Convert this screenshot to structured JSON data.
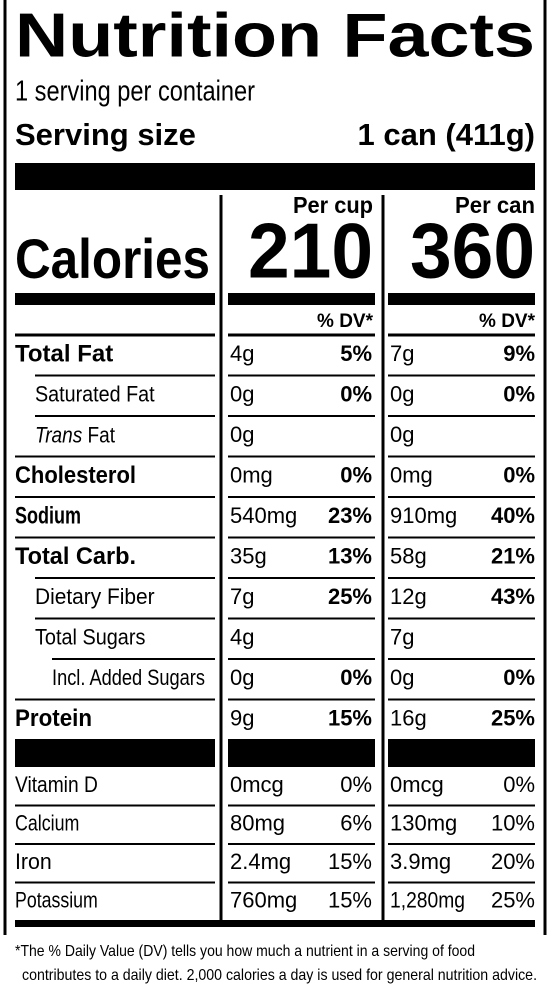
{
  "title": "Nutrition Facts",
  "servings": "1 serving per container",
  "serving_size": {
    "label": "Serving size",
    "value": "1 can (411g)"
  },
  "columns": [
    "Per cup",
    "Per can"
  ],
  "calories": {
    "label": "Calories",
    "values": [
      "210",
      "360"
    ]
  },
  "dv_header": "% DV*",
  "nutrients": [
    {
      "name": "Total Fat",
      "bold": true,
      "indent": 0,
      "cells": [
        "4g",
        "5%",
        "7g",
        "9%"
      ]
    },
    {
      "name": "Saturated Fat",
      "bold": false,
      "indent": 1,
      "cells": [
        "0g",
        "0%",
        "0g",
        "0%"
      ]
    },
    {
      "name_italic": "Trans",
      "name": "Fat",
      "bold": false,
      "indent": 1,
      "cells": [
        "0g",
        null,
        "0g",
        null
      ]
    },
    {
      "name": "Cholesterol",
      "bold": true,
      "indent": 0,
      "cells": [
        "0mg",
        "0%",
        "0mg",
        "0%"
      ]
    },
    {
      "name": "Sodium",
      "bold": true,
      "indent": 0,
      "cells": [
        "540mg",
        "23%",
        "910mg",
        "40%"
      ]
    },
    {
      "name": "Total Carb.",
      "bold": true,
      "indent": 0,
      "cells": [
        "35g",
        "13%",
        "58g",
        "21%"
      ]
    },
    {
      "name": "Dietary Fiber",
      "bold": false,
      "indent": 1,
      "cells": [
        "7g",
        "25%",
        "12g",
        "43%"
      ]
    },
    {
      "name": "Total Sugars",
      "bold": false,
      "indent": 1,
      "cells": [
        "4g",
        null,
        "7g",
        null
      ]
    },
    {
      "name": "Incl. Added Sugars",
      "bold": false,
      "indent": 2,
      "cells": [
        "0g",
        "0%",
        "0g",
        "0%"
      ]
    },
    {
      "name": "Protein",
      "bold": true,
      "indent": 0,
      "cells": [
        "9g",
        "15%",
        "16g",
        "25%"
      ]
    }
  ],
  "vitamins": [
    {
      "name": "Vitamin D",
      "cells": [
        "0mcg",
        "0%",
        "0mcg",
        "0%"
      ]
    },
    {
      "name": "Calcium",
      "cells": [
        "80mg",
        "6%",
        "130mg",
        "10%"
      ]
    },
    {
      "name": "Iron",
      "cells": [
        "2.4mg",
        "15%",
        "3.9mg",
        "20%"
      ]
    },
    {
      "name": "Potassium",
      "cells": [
        "760mg",
        "15%",
        "1,280mg",
        "25%"
      ]
    }
  ],
  "footnote": [
    "*The % Daily Value (DV) tells you how much a nutrient in a serving of food",
    "contributes to a daily diet. 2,000 calories a day is used for general nutrition advice."
  ]
}
